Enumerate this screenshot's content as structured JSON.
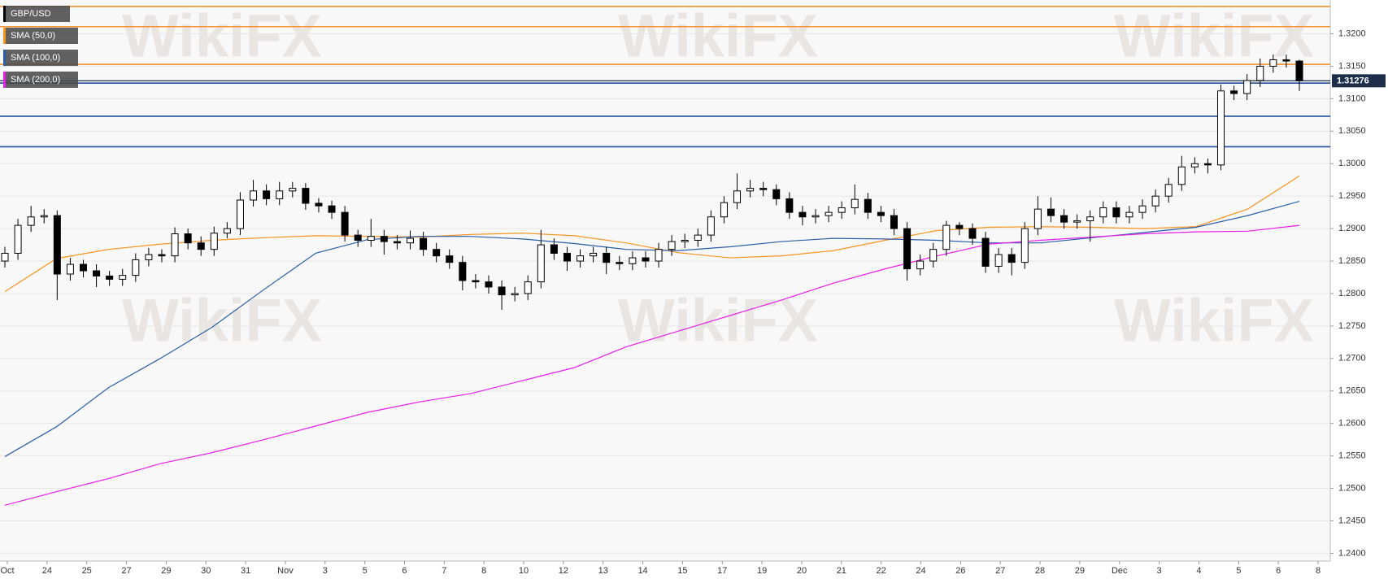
{
  "chart_data": {
    "type": "candlestick",
    "symbol": "GBP/USD",
    "watermark": "WikiFX",
    "candles": {
      "open": [
        1.285,
        1.2862,
        1.2905,
        1.2918,
        1.292,
        1.283,
        1.2845,
        1.2835,
        1.2827,
        1.2822,
        1.2828,
        1.2852,
        1.286,
        1.2858,
        1.2892,
        1.2878,
        1.2868,
        1.2893,
        1.29,
        1.2944,
        1.2958,
        1.2946,
        1.2958,
        1.2962,
        1.2939,
        1.2935,
        1.2925,
        1.289,
        1.2882,
        1.2888,
        1.288,
        1.2878,
        1.2885,
        1.2868,
        1.2858,
        1.2848,
        1.282,
        1.2818,
        1.281,
        1.2798,
        1.28,
        1.2818,
        1.2875,
        1.2862,
        1.285,
        1.2858,
        1.2862,
        1.2848,
        1.2846,
        1.2855,
        1.285,
        1.2868,
        1.288,
        1.2882,
        1.289,
        1.2918,
        1.294,
        1.2958,
        1.2962,
        1.296,
        1.2946,
        1.2925,
        1.2918,
        1.292,
        1.2925,
        1.2932,
        1.2945,
        1.2925,
        1.292,
        1.29,
        1.2838,
        1.285,
        1.2868,
        1.2905,
        1.29,
        1.2885,
        1.2842,
        1.286,
        1.2848,
        1.29,
        1.293,
        1.292,
        1.291,
        1.2912,
        1.2918,
        1.2932,
        1.2918,
        1.2925,
        1.2935,
        1.295,
        1.2968,
        1.2995,
        1.3,
        1.2998,
        1.3112,
        1.3108,
        1.3128,
        1.315,
        1.316,
        1.3158
      ],
      "high": [
        1.2872,
        1.2915,
        1.2935,
        1.293,
        1.2928,
        1.2855,
        1.2852,
        1.2845,
        1.2835,
        1.2838,
        1.2862,
        1.287,
        1.2868,
        1.2902,
        1.29,
        1.2888,
        1.2903,
        1.291,
        1.2956,
        1.2975,
        1.2968,
        1.2972,
        1.2972,
        1.297,
        1.2947,
        1.2943,
        1.2935,
        1.2898,
        1.2915,
        1.2898,
        1.289,
        1.2897,
        1.2895,
        1.2878,
        1.2868,
        1.2858,
        1.283,
        1.2828,
        1.282,
        1.281,
        1.2828,
        1.2898,
        1.2885,
        1.2872,
        1.2868,
        1.2872,
        1.2872,
        1.2858,
        1.2865,
        1.2865,
        1.2878,
        1.289,
        1.2892,
        1.29,
        1.2928,
        1.295,
        1.2985,
        1.2975,
        1.2972,
        1.2968,
        1.2956,
        1.2935,
        1.293,
        1.2935,
        1.2942,
        1.2968,
        1.2955,
        1.2935,
        1.293,
        1.291,
        1.286,
        1.2878,
        1.2912,
        1.291,
        1.2908,
        1.2895,
        1.287,
        1.287,
        1.291,
        1.295,
        1.2948,
        1.293,
        1.2922,
        1.2928,
        1.2942,
        1.2942,
        1.2935,
        1.2945,
        1.296,
        1.2978,
        1.3012,
        1.301,
        1.3008,
        1.3122,
        1.312,
        1.3138,
        1.3162,
        1.3168,
        1.3168,
        1.316
      ],
      "low": [
        1.284,
        1.2852,
        1.2895,
        1.2908,
        1.279,
        1.282,
        1.2825,
        1.281,
        1.2812,
        1.2812,
        1.2818,
        1.2842,
        1.2848,
        1.2848,
        1.2868,
        1.2858,
        1.2858,
        1.2885,
        1.289,
        1.2934,
        1.2936,
        1.2936,
        1.2948,
        1.2929,
        1.2925,
        1.2915,
        1.288,
        1.2872,
        1.2872,
        1.286,
        1.2868,
        1.2868,
        1.2858,
        1.2848,
        1.2838,
        1.2805,
        1.2808,
        1.28,
        1.2775,
        1.2788,
        1.279,
        1.2808,
        1.2852,
        1.2835,
        1.284,
        1.2848,
        1.283,
        1.2836,
        1.2836,
        1.284,
        1.284,
        1.2858,
        1.287,
        1.2872,
        1.288,
        1.2908,
        1.293,
        1.2948,
        1.295,
        1.2936,
        1.2915,
        1.2905,
        1.2908,
        1.291,
        1.2915,
        1.2922,
        1.2915,
        1.291,
        1.289,
        1.282,
        1.2828,
        1.284,
        1.2858,
        1.289,
        1.2875,
        1.2832,
        1.2832,
        1.2828,
        1.2838,
        1.289,
        1.291,
        1.29,
        1.29,
        1.288,
        1.2908,
        1.2908,
        1.2908,
        1.2915,
        1.2925,
        1.294,
        1.2958,
        1.2985,
        1.2985,
        1.299,
        1.3098,
        1.3098,
        1.3118,
        1.314,
        1.3148,
        1.3112
      ],
      "close": [
        1.2862,
        1.2905,
        1.2918,
        1.292,
        1.283,
        1.2845,
        1.2835,
        1.2827,
        1.2822,
        1.2828,
        1.2852,
        1.286,
        1.2858,
        1.2892,
        1.2878,
        1.2868,
        1.2893,
        1.29,
        1.2944,
        1.2958,
        1.2946,
        1.2958,
        1.2962,
        1.2939,
        1.2935,
        1.2925,
        1.289,
        1.2882,
        1.2888,
        1.288,
        1.2878,
        1.2885,
        1.2868,
        1.2858,
        1.2848,
        1.282,
        1.2818,
        1.281,
        1.2798,
        1.28,
        1.2818,
        1.2875,
        1.2862,
        1.285,
        1.2858,
        1.2862,
        1.2848,
        1.2846,
        1.2855,
        1.285,
        1.2868,
        1.288,
        1.2882,
        1.289,
        1.2918,
        1.294,
        1.2958,
        1.2962,
        1.296,
        1.2946,
        1.2925,
        1.2918,
        1.292,
        1.2925,
        1.2932,
        1.2945,
        1.2925,
        1.292,
        1.29,
        1.2838,
        1.285,
        1.2868,
        1.2905,
        1.29,
        1.2885,
        1.2842,
        1.286,
        1.2848,
        1.29,
        1.293,
        1.292,
        1.291,
        1.2912,
        1.2918,
        1.2932,
        1.2918,
        1.2925,
        1.2935,
        1.295,
        1.2968,
        1.2995,
        1.3,
        1.2998,
        1.3112,
        1.3108,
        1.3128,
        1.315,
        1.316,
        1.3158,
        1.3128
      ]
    },
    "up_color": "#ffffff",
    "down_color": "#000000",
    "series": [
      {
        "name": "SMA (50,0)",
        "color": "#f7931e",
        "values": [
          1.2803,
          1.2854,
          1.2868,
          1.2876,
          1.2882,
          1.2886,
          1.2889,
          1.2888,
          1.2887,
          1.2891,
          1.2893,
          1.2889,
          1.2878,
          1.2863,
          1.2855,
          1.2858,
          1.2866,
          1.2882,
          1.2897,
          1.2902,
          1.2903,
          1.2902,
          1.29,
          1.2903,
          1.293,
          1.2981
        ]
      },
      {
        "name": "SMA (100,0)",
        "color": "#2a5ea8",
        "values": [
          1.2549,
          1.2595,
          1.2655,
          1.27,
          1.2748,
          1.2806,
          1.2862,
          1.2883,
          1.2888,
          1.2888,
          1.2884,
          1.2877,
          1.2868,
          1.2866,
          1.2872,
          1.288,
          1.2885,
          1.2884,
          1.2882,
          1.2878,
          1.2878,
          1.2886,
          1.2894,
          1.2902,
          1.292,
          1.2942
        ]
      },
      {
        "name": "SMA (200,0)",
        "color": "#e81ee8",
        "values": [
          1.2474,
          1.2495,
          1.2515,
          1.2538,
          1.2555,
          1.2575,
          1.2596,
          1.2617,
          1.2633,
          1.2646,
          1.2666,
          1.2686,
          1.2718,
          1.2742,
          1.2766,
          1.279,
          1.2816,
          1.2838,
          1.2858,
          1.2876,
          1.2882,
          1.2887,
          1.2892,
          1.2895,
          1.2896,
          1.2905
        ]
      }
    ],
    "levels": [
      {
        "value": 1.3242,
        "color": "#f5922f"
      },
      {
        "value": 1.3211,
        "color": "#f5922f"
      },
      {
        "value": 1.3153,
        "color": "#f5922f"
      },
      {
        "value": 1.3124,
        "color": "#1f4e9c"
      },
      {
        "value": 1.3073,
        "color": "#1f4e9c"
      },
      {
        "value": 1.3026,
        "color": "#1f4e9c"
      }
    ],
    "last_price": {
      "value": 1.31276,
      "label": "1.31276",
      "color": "#1c2e4a"
    },
    "ylim": [
      1.2388,
      1.3252
    ],
    "yticks": [
      {
        "value": 1.24,
        "label": "1.2400"
      },
      {
        "value": 1.245,
        "label": "1.2450"
      },
      {
        "value": 1.25,
        "label": "1.2500"
      },
      {
        "value": 1.255,
        "label": "1.2550"
      },
      {
        "value": 1.26,
        "label": "1.2600"
      },
      {
        "value": 1.265,
        "label": "1.2650"
      },
      {
        "value": 1.27,
        "label": "1.2700"
      },
      {
        "value": 1.275,
        "label": "1.2750"
      },
      {
        "value": 1.28,
        "label": "1.2800"
      },
      {
        "value": 1.285,
        "label": "1.2850"
      },
      {
        "value": 1.29,
        "label": "1.2900"
      },
      {
        "value": 1.295,
        "label": "1.2950"
      },
      {
        "value": 1.3,
        "label": "1.3000"
      },
      {
        "value": 1.305,
        "label": "1.3050"
      },
      {
        "value": 1.31,
        "label": "1.3100"
      },
      {
        "value": 1.315,
        "label": "1.3150"
      },
      {
        "value": 1.32,
        "label": "1.3200"
      }
    ],
    "x_labels": [
      "Oct",
      "24",
      "25",
      "27",
      "29",
      "30",
      "31",
      "Nov",
      "3",
      "5",
      "6",
      "7",
      "8",
      "10",
      "12",
      "13",
      "14",
      "15",
      "17",
      "19",
      "20",
      "21",
      "22",
      "24",
      "26",
      "27",
      "28",
      "29",
      "Dec",
      "3",
      "4",
      "5",
      "6",
      "8"
    ],
    "grid": true
  }
}
